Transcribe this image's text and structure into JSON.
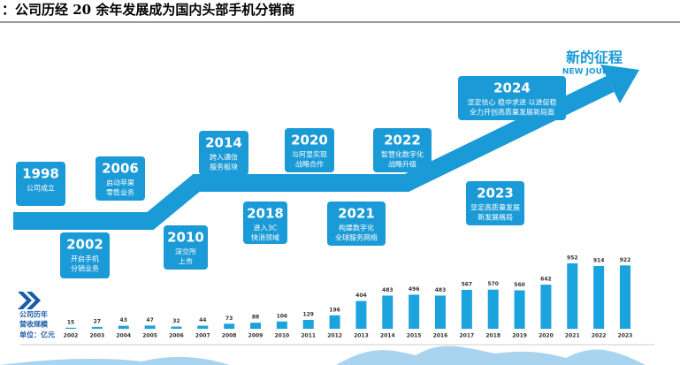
{
  "title": "：公司历经 20 余年发展成为国内头部手机分销商",
  "journey": {
    "title": "新的征程",
    "subtitle": "NEW JOURNEY"
  },
  "milestones": [
    {
      "year": "1998",
      "lines": [
        "公司成立"
      ]
    },
    {
      "year": "2002",
      "lines": [
        "开启手机",
        "分销业务"
      ]
    },
    {
      "year": "2006",
      "lines": [
        "启动苹果",
        "零售业务"
      ]
    },
    {
      "year": "2010",
      "lines": [
        "深交所",
        "上市"
      ]
    },
    {
      "year": "2014",
      "lines": [
        "跨入通信",
        "服务板块"
      ]
    },
    {
      "year": "2018",
      "lines": [
        "进入3C",
        "快消领域"
      ]
    },
    {
      "year": "2020",
      "lines": [
        "与阿里实现",
        "战略合作"
      ]
    },
    {
      "year": "2021",
      "lines": [
        "构建数字化",
        "全球服务网络"
      ]
    },
    {
      "year": "2022",
      "lines": [
        "智慧化数字化",
        "战略升级"
      ]
    },
    {
      "year": "2023",
      "lines": [
        "坚定高质量发展",
        "新发展格局"
      ]
    },
    {
      "year": "2024",
      "lines": [
        "坚定信心 稳中求进 以进促稳",
        "全力开创高质量发展新局面"
      ]
    }
  ],
  "chart_data": {
    "type": "bar",
    "label_lines": [
      "公司历年",
      "营收规模"
    ],
    "unit": "单位：亿元",
    "color": "#1aa3dc",
    "categories": [
      "2002",
      "2003",
      "2004",
      "2005",
      "2006",
      "2007",
      "2008",
      "2009",
      "2010",
      "2011",
      "2012",
      "2013",
      "2014",
      "2015",
      "2016",
      "2017",
      "2018",
      "2019",
      "2020",
      "2021",
      "2022",
      "2023"
    ],
    "values": [
      15,
      27,
      43,
      47,
      32,
      44,
      73,
      88,
      106,
      129,
      196,
      404,
      483,
      496,
      483,
      567,
      570,
      560,
      642,
      952,
      914,
      922
    ]
  }
}
